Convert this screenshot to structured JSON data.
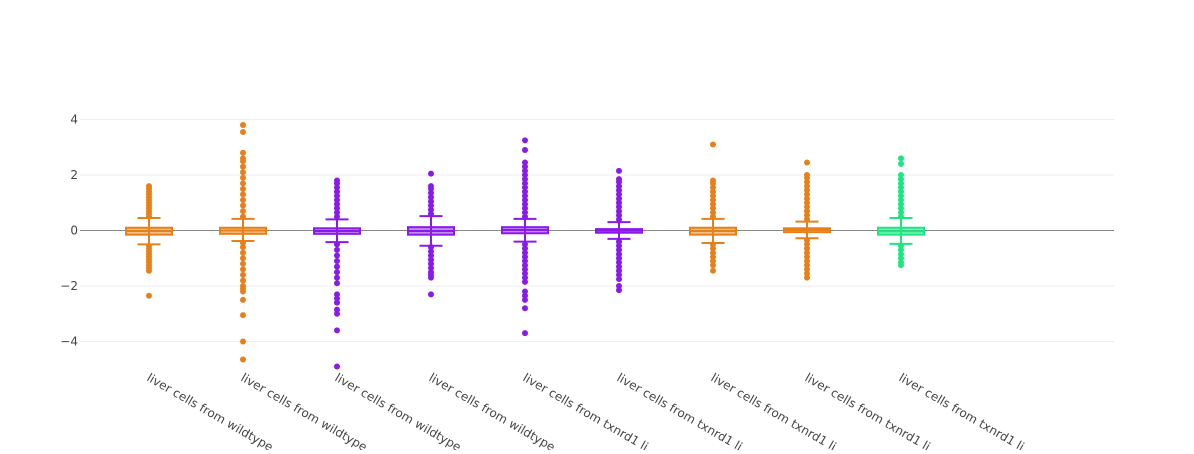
{
  "chart_data": {
    "type": "box",
    "title": "",
    "xlabel": "",
    "ylabel": "",
    "ylim": [
      -4.9,
      4.2
    ],
    "yticks": [
      4,
      2,
      0,
      -2,
      -4
    ],
    "ytick_labels": [
      "4",
      "2",
      "0",
      "−2",
      "−4"
    ],
    "grid": true,
    "zero_line": true,
    "legend": "none",
    "colors": {
      "orange": "#e8801a",
      "purple": "#8a1ae8",
      "green": "#1ae87f",
      "grid": "#eeeeee",
      "zero": "#888888",
      "text": "#444444"
    },
    "categories": [
      "liver cells from wildtype ...",
      "liver cells from wildtype ...",
      "liver cells from wildtype ...",
      "liver cells from wildtype ...",
      "liver cells from txnrd1 li...",
      "liver cells from txnrd1 li...",
      "liver cells from txnrd1 li...",
      "liver cells from txnrd1 li...",
      "liver cells from txnrd1 li..."
    ],
    "series": [
      {
        "color": "#e8801a",
        "q1": -0.15,
        "median": -0.02,
        "q3": 0.1,
        "whisker_low": -0.5,
        "whisker_high": 0.45,
        "outliers_high": [
          0.5,
          0.6,
          0.7,
          0.8,
          0.9,
          1.0,
          1.1,
          1.2,
          1.3,
          1.4,
          1.5,
          1.6
        ],
        "outliers_low": [
          -0.55,
          -0.65,
          -0.75,
          -0.85,
          -0.95,
          -1.05,
          -1.15,
          -1.25,
          -1.35,
          -1.45,
          -2.35
        ]
      },
      {
        "color": "#e8801a",
        "q1": -0.12,
        "median": 0.0,
        "q3": 0.1,
        "whisker_low": -0.38,
        "whisker_high": 0.42,
        "outliers_high": [
          0.5,
          0.7,
          0.9,
          1.1,
          1.3,
          1.5,
          1.7,
          1.9,
          2.1,
          2.3,
          2.5,
          2.6,
          2.8,
          3.55,
          3.8
        ],
        "outliers_low": [
          -0.45,
          -0.6,
          -0.8,
          -1.0,
          -1.2,
          -1.4,
          -1.6,
          -1.8,
          -2.0,
          -2.1,
          -2.2,
          -2.5,
          -3.05,
          -4.0,
          -4.65
        ]
      },
      {
        "color": "#8a1ae8",
        "q1": -0.12,
        "median": -0.02,
        "q3": 0.08,
        "whisker_low": -0.42,
        "whisker_high": 0.4,
        "outliers_high": [
          0.5,
          0.65,
          0.8,
          0.95,
          1.1,
          1.25,
          1.4,
          1.55,
          1.7,
          1.8
        ],
        "outliers_low": [
          -0.5,
          -0.7,
          -0.9,
          -1.1,
          -1.3,
          -1.5,
          -1.7,
          -1.9,
          -2.3,
          -2.45,
          -2.6,
          -2.85,
          -3.0,
          -3.6,
          -4.9
        ]
      },
      {
        "color": "#8a1ae8",
        "q1": -0.15,
        "median": -0.02,
        "q3": 0.12,
        "whisker_low": -0.55,
        "whisker_high": 0.52,
        "outliers_high": [
          0.6,
          0.75,
          0.9,
          1.05,
          1.2,
          1.35,
          1.5,
          1.6,
          2.05
        ],
        "outliers_low": [
          -0.6,
          -0.75,
          -0.9,
          -1.05,
          -1.2,
          -1.35,
          -1.5,
          -1.6,
          -1.7,
          -2.3
        ]
      },
      {
        "color": "#8a1ae8",
        "q1": -0.1,
        "median": 0.02,
        "q3": 0.12,
        "whisker_low": -0.4,
        "whisker_high": 0.42,
        "outliers_high": [
          0.5,
          0.65,
          0.8,
          0.95,
          1.1,
          1.25,
          1.4,
          1.55,
          1.7,
          1.85,
          2.0,
          2.15,
          2.3,
          2.45,
          2.9,
          3.25
        ],
        "outliers_low": [
          -0.5,
          -0.65,
          -0.8,
          -0.95,
          -1.1,
          -1.25,
          -1.4,
          -1.55,
          -1.7,
          -1.85,
          -2.2,
          -2.35,
          -2.5,
          -2.8,
          -3.7
        ]
      },
      {
        "color": "#8a1ae8",
        "q1": -0.08,
        "median": 0.0,
        "q3": 0.05,
        "whisker_low": -0.3,
        "whisker_high": 0.3,
        "outliers_high": [
          0.4,
          0.55,
          0.7,
          0.85,
          1.0,
          1.15,
          1.3,
          1.45,
          1.6,
          1.75,
          1.85,
          2.15
        ],
        "outliers_low": [
          -0.4,
          -0.55,
          -0.7,
          -0.85,
          -1.0,
          -1.15,
          -1.3,
          -1.45,
          -1.6,
          -1.75,
          -2.0,
          -2.15
        ]
      },
      {
        "color": "#e8801a",
        "q1": -0.15,
        "median": -0.02,
        "q3": 0.1,
        "whisker_low": -0.45,
        "whisker_high": 0.42,
        "outliers_high": [
          0.5,
          0.65,
          0.8,
          0.95,
          1.1,
          1.25,
          1.4,
          1.55,
          1.7,
          1.8,
          3.1
        ],
        "outliers_low": [
          -0.5,
          -0.65,
          -0.8,
          -0.95,
          -1.1,
          -1.25,
          -1.45
        ]
      },
      {
        "color": "#e8801a",
        "q1": -0.06,
        "median": 0.02,
        "q3": 0.08,
        "whisker_low": -0.28,
        "whisker_high": 0.32,
        "outliers_high": [
          0.4,
          0.55,
          0.7,
          0.85,
          1.0,
          1.15,
          1.3,
          1.45,
          1.6,
          1.75,
          1.9,
          2.0,
          2.45
        ],
        "outliers_low": [
          -0.35,
          -0.5,
          -0.65,
          -0.8,
          -0.95,
          -1.1,
          -1.25,
          -1.4,
          -1.55,
          -1.7
        ]
      },
      {
        "color": "#1ae87f",
        "q1": -0.15,
        "median": -0.03,
        "q3": 0.1,
        "whisker_low": -0.48,
        "whisker_high": 0.45,
        "outliers_high": [
          0.5,
          0.65,
          0.8,
          0.95,
          1.1,
          1.25,
          1.4,
          1.55,
          1.7,
          1.85,
          2.0,
          2.4,
          2.6
        ],
        "outliers_low": [
          -0.55,
          -0.7,
          -0.85,
          -1.0,
          -1.15,
          -1.25
        ]
      }
    ]
  }
}
